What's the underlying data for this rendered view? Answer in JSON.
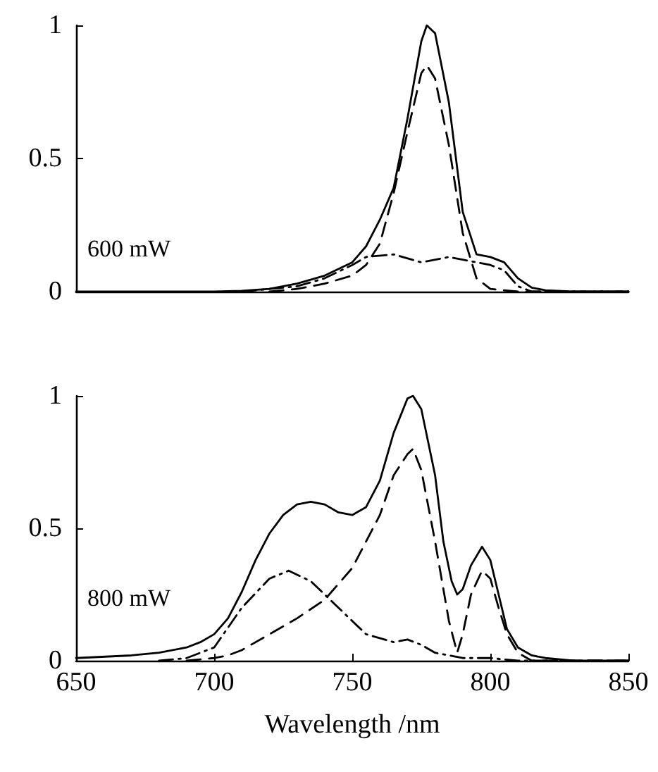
{
  "chart_data": [
    {
      "type": "line",
      "annotations": [
        "600 mW"
      ],
      "xlim": [
        650,
        850
      ],
      "ylim": [
        0,
        1
      ],
      "yticks": [
        0,
        0.5,
        1
      ],
      "tick_labels": "y",
      "grid": false,
      "marker": "none",
      "series": [
        {
          "color": "#000000",
          "line_style": "solid",
          "x": [
            650,
            680,
            700,
            710,
            720,
            730,
            740,
            750,
            755,
            760,
            765,
            770,
            775,
            777,
            780,
            785,
            790,
            795,
            800,
            805,
            810,
            815,
            820,
            830,
            850
          ],
          "values": [
            0,
            0,
            0,
            0.003,
            0.01,
            0.03,
            0.06,
            0.11,
            0.17,
            0.27,
            0.39,
            0.65,
            0.94,
            1,
            0.97,
            0.71,
            0.3,
            0.14,
            0.13,
            0.11,
            0.05,
            0.015,
            0.005,
            0,
            0
          ]
        },
        {
          "color": "#000000",
          "line_style": "dashed",
          "x": [
            720,
            730,
            740,
            750,
            755,
            760,
            765,
            770,
            775,
            777,
            780,
            785,
            790,
            795,
            800,
            810,
            850
          ],
          "values": [
            0,
            0.01,
            0.03,
            0.06,
            0.1,
            0.18,
            0.37,
            0.6,
            0.82,
            0.85,
            0.8,
            0.55,
            0.22,
            0.05,
            0.01,
            0,
            0
          ]
        },
        {
          "color": "#000000",
          "line_style": "dotted",
          "x": [
            710,
            720,
            730,
            740,
            750,
            755,
            765,
            775,
            785,
            790,
            800,
            805,
            810,
            815,
            850
          ],
          "values": [
            0,
            0.01,
            0.02,
            0.05,
            0.1,
            0.13,
            0.14,
            0.11,
            0.13,
            0.12,
            0.1,
            0.08,
            0.02,
            0,
            0
          ]
        }
      ]
    },
    {
      "type": "line",
      "xlabel": "Wavelength /nm",
      "annotations": [
        "800 mW"
      ],
      "xlim": [
        650,
        850
      ],
      "xticks": [
        650,
        700,
        750,
        800,
        850
      ],
      "ylim": [
        0,
        1
      ],
      "yticks": [
        0,
        0.5,
        1
      ],
      "grid": false,
      "marker": "none",
      "series": [
        {
          "color": "#000000",
          "line_style": "solid",
          "x": [
            650,
            670,
            680,
            690,
            695,
            700,
            705,
            710,
            715,
            720,
            725,
            730,
            735,
            740,
            745,
            750,
            755,
            760,
            765,
            770,
            772,
            775,
            780,
            783,
            786,
            788,
            790,
            793,
            797,
            800,
            803,
            806,
            810,
            815,
            820,
            830,
            850
          ],
          "values": [
            0.01,
            0.02,
            0.03,
            0.05,
            0.07,
            0.1,
            0.16,
            0.26,
            0.38,
            0.48,
            0.55,
            0.59,
            0.6,
            0.59,
            0.56,
            0.55,
            0.58,
            0.68,
            0.86,
            0.99,
            1,
            0.95,
            0.7,
            0.45,
            0.3,
            0.25,
            0.27,
            0.36,
            0.43,
            0.38,
            0.25,
            0.12,
            0.05,
            0.02,
            0.01,
            0,
            0
          ]
        },
        {
          "color": "#000000",
          "line_style": "dashed",
          "x": [
            690,
            700,
            705,
            710,
            720,
            730,
            740,
            750,
            760,
            765,
            770,
            772,
            775,
            780,
            785,
            788,
            790,
            793,
            797,
            800,
            803,
            806,
            810,
            815,
            850
          ],
          "values": [
            0,
            0.01,
            0.02,
            0.04,
            0.1,
            0.16,
            0.23,
            0.35,
            0.55,
            0.7,
            0.78,
            0.8,
            0.72,
            0.45,
            0.15,
            0.03,
            0.1,
            0.25,
            0.34,
            0.31,
            0.2,
            0.1,
            0.03,
            0,
            0
          ]
        },
        {
          "color": "#000000",
          "line_style": "dotted",
          "x": [
            680,
            690,
            700,
            710,
            720,
            727,
            735,
            745,
            755,
            765,
            770,
            775,
            780,
            790,
            800,
            810,
            850
          ],
          "values": [
            0,
            0.01,
            0.05,
            0.2,
            0.31,
            0.34,
            0.3,
            0.2,
            0.1,
            0.07,
            0.08,
            0.06,
            0.03,
            0.01,
            0.01,
            0,
            0
          ]
        }
      ]
    }
  ]
}
